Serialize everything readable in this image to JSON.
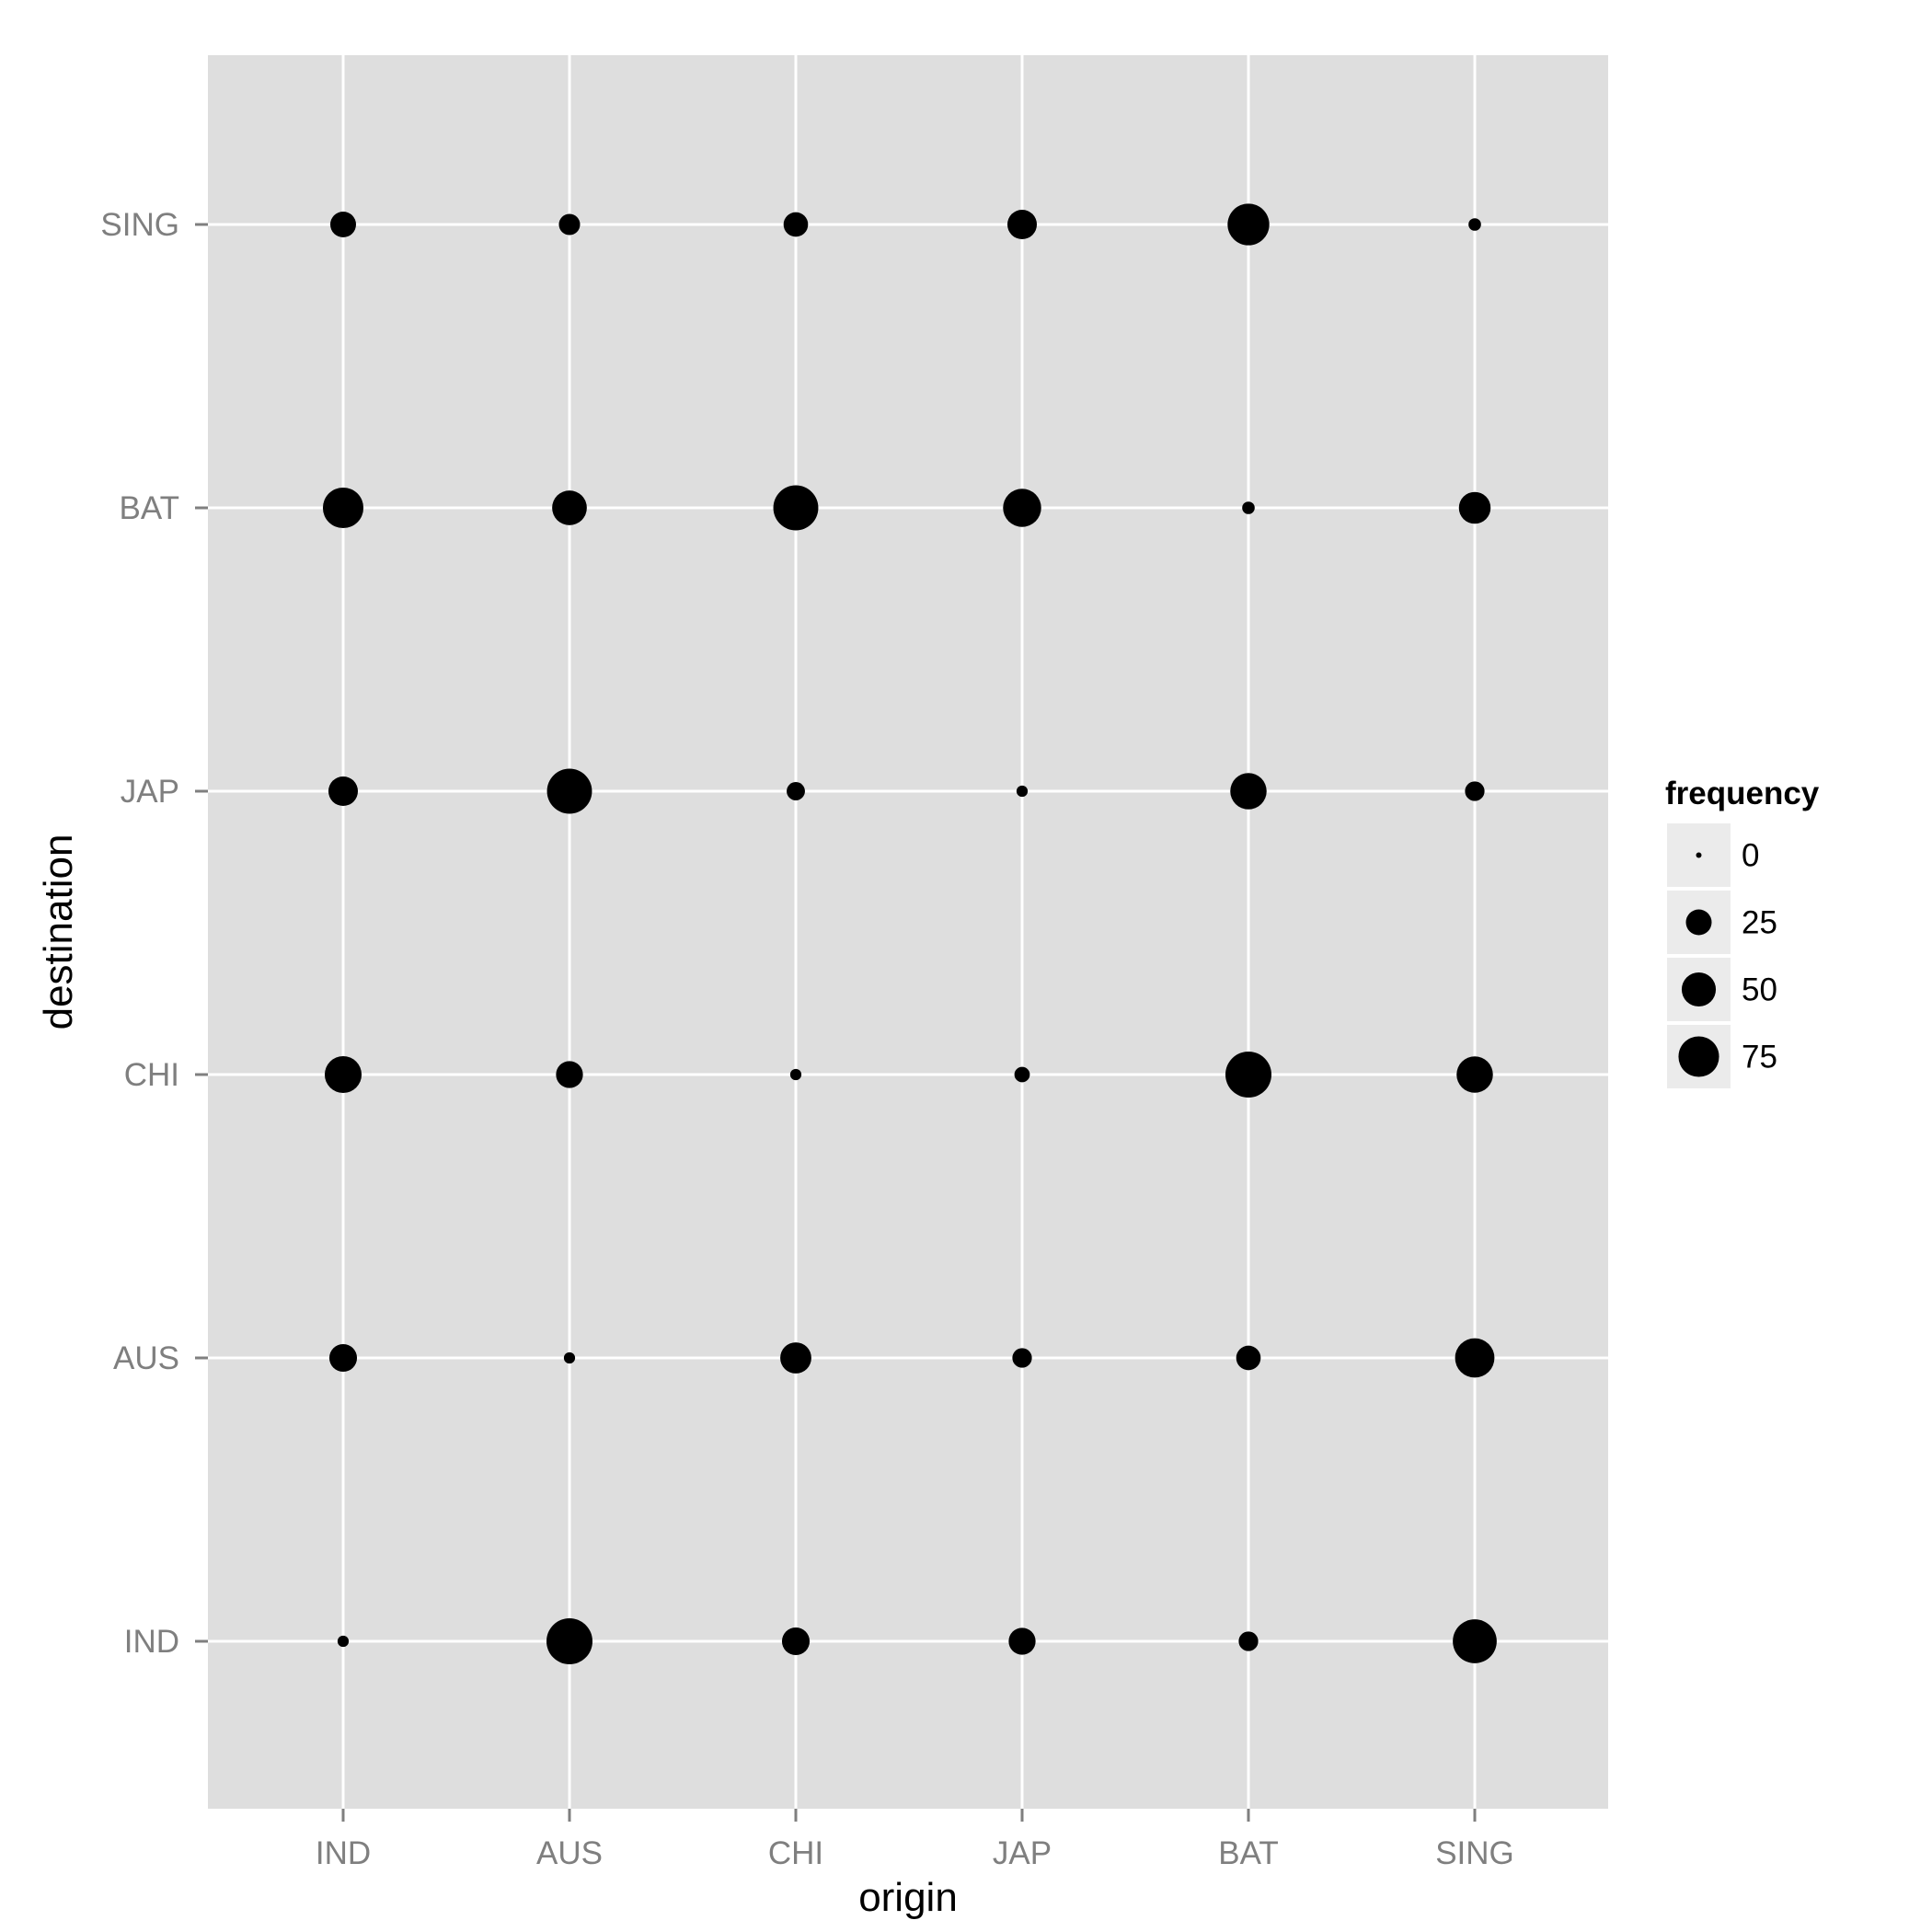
{
  "chart_data": {
    "type": "scatter",
    "title": "",
    "xlabel": "origin",
    "ylabel": "destination",
    "x_categories": [
      "IND",
      "AUS",
      "CHI",
      "JAP",
      "BAT",
      "SING"
    ],
    "y_categories": [
      "IND",
      "AUS",
      "CHI",
      "JAP",
      "BAT",
      "SING"
    ],
    "size_variable": "frequency",
    "points": [
      {
        "origin": "IND",
        "destination": "SING",
        "frequency": 25
      },
      {
        "origin": "AUS",
        "destination": "SING",
        "frequency": 15
      },
      {
        "origin": "CHI",
        "destination": "SING",
        "frequency": 22
      },
      {
        "origin": "JAP",
        "destination": "SING",
        "frequency": 35
      },
      {
        "origin": "BAT",
        "destination": "SING",
        "frequency": 80
      },
      {
        "origin": "SING",
        "destination": "SING",
        "frequency": 3
      },
      {
        "origin": "IND",
        "destination": "BAT",
        "frequency": 75
      },
      {
        "origin": "AUS",
        "destination": "BAT",
        "frequency": 52
      },
      {
        "origin": "CHI",
        "destination": "BAT",
        "frequency": 95
      },
      {
        "origin": "JAP",
        "destination": "BAT",
        "frequency": 65
      },
      {
        "origin": "BAT",
        "destination": "BAT",
        "frequency": 3
      },
      {
        "origin": "SING",
        "destination": "BAT",
        "frequency": 42
      },
      {
        "origin": "IND",
        "destination": "JAP",
        "frequency": 35
      },
      {
        "origin": "AUS",
        "destination": "JAP",
        "frequency": 95
      },
      {
        "origin": "CHI",
        "destination": "JAP",
        "frequency": 10
      },
      {
        "origin": "JAP",
        "destination": "JAP",
        "frequency": 2
      },
      {
        "origin": "BAT",
        "destination": "JAP",
        "frequency": 58
      },
      {
        "origin": "SING",
        "destination": "JAP",
        "frequency": 12
      },
      {
        "origin": "IND",
        "destination": "CHI",
        "frequency": 60
      },
      {
        "origin": "AUS",
        "destination": "CHI",
        "frequency": 28
      },
      {
        "origin": "CHI",
        "destination": "CHI",
        "frequency": 2
      },
      {
        "origin": "JAP",
        "destination": "CHI",
        "frequency": 6
      },
      {
        "origin": "BAT",
        "destination": "CHI",
        "frequency": 100
      },
      {
        "origin": "SING",
        "destination": "CHI",
        "frequency": 58
      },
      {
        "origin": "IND",
        "destination": "AUS",
        "frequency": 30
      },
      {
        "origin": "AUS",
        "destination": "AUS",
        "frequency": 2
      },
      {
        "origin": "CHI",
        "destination": "AUS",
        "frequency": 40
      },
      {
        "origin": "JAP",
        "destination": "AUS",
        "frequency": 12
      },
      {
        "origin": "BAT",
        "destination": "AUS",
        "frequency": 22
      },
      {
        "origin": "SING",
        "destination": "AUS",
        "frequency": 70
      },
      {
        "origin": "IND",
        "destination": "IND",
        "frequency": 2
      },
      {
        "origin": "AUS",
        "destination": "IND",
        "frequency": 100
      },
      {
        "origin": "CHI",
        "destination": "IND",
        "frequency": 30
      },
      {
        "origin": "JAP",
        "destination": "IND",
        "frequency": 28
      },
      {
        "origin": "BAT",
        "destination": "IND",
        "frequency": 12
      },
      {
        "origin": "SING",
        "destination": "IND",
        "frequency": 90
      }
    ],
    "legend": {
      "title": "frequency",
      "placement": "right",
      "breaks": [
        0,
        25,
        50,
        75
      ]
    },
    "grid": true
  },
  "colors": {
    "panel_background": "#dedede",
    "grid_line": "#ffffff",
    "point": "#000000",
    "tick_label": "#7f7f7f",
    "legend_key_background": "#ebebeb"
  }
}
